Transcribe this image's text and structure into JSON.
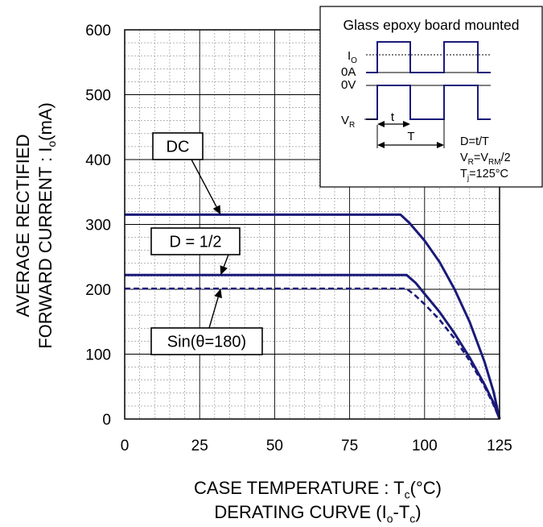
{
  "chart_data": {
    "type": "line",
    "xlabel": "CASE TEMPERATURE : T",
    "xlabel_sub": "c",
    "xlabel_tail": "(°C)",
    "ylabel_line1": "AVERAGE RECTIFIED",
    "ylabel_line2": "FORWARD CURRENT : I",
    "ylabel_sub": "o",
    "ylabel_tail": "(mA)",
    "caption": "DERATING CURVE (I",
    "caption_sub1": "o",
    "caption_mid": "-T",
    "caption_sub2": "c",
    "caption_tail": ")",
    "xlim": [
      0,
      125
    ],
    "ylim": [
      0,
      600
    ],
    "x_ticks": [
      0,
      25,
      50,
      75,
      100,
      125
    ],
    "y_ticks": [
      0,
      100,
      200,
      300,
      400,
      500,
      600
    ],
    "grid": true,
    "series": [
      {
        "name": "DC",
        "style": "solid",
        "x": [
          0,
          92,
          95,
          100,
          105,
          110,
          115,
          120,
          123,
          125
        ],
        "y": [
          315,
          315,
          302,
          275,
          242,
          200,
          150,
          88,
          42,
          0
        ]
      },
      {
        "name": "D = 1/2",
        "style": "solid",
        "x": [
          0,
          94,
          97,
          100,
          105,
          110,
          115,
          120,
          123,
          125
        ],
        "y": [
          222,
          222,
          210,
          193,
          165,
          132,
          95,
          53,
          25,
          0
        ]
      },
      {
        "name": "Sin(θ=180)",
        "style": "dashed",
        "x": [
          0,
          94,
          97,
          100,
          105,
          110,
          115,
          120,
          123,
          125
        ],
        "y": [
          201,
          201,
          190,
          177,
          153,
          124,
          90,
          50,
          22,
          0
        ]
      }
    ],
    "callouts": [
      {
        "label": "DC",
        "arrow_to": [
          32,
          315
        ]
      },
      {
        "label": "D = 1/2",
        "arrow_to": [
          32,
          222
        ]
      },
      {
        "label": "Sin(θ=180)",
        "arrow_to": [
          32,
          201
        ]
      }
    ],
    "inset": {
      "title": "Glass epoxy board mounted",
      "io_label": "I",
      "io_sub": "O",
      "zero_a": "0A",
      "zero_v": "0V",
      "vr_label": "V",
      "vr_sub": "R",
      "t_label": "t",
      "T_label": "T",
      "eq1": "D=t/T",
      "eq2_a": "V",
      "eq2_b": "R",
      "eq2_c": "=V",
      "eq2_d": "RM",
      "eq2_e": "/2",
      "eq3_a": "T",
      "eq3_b": "j",
      "eq3_c": "=125°C"
    },
    "colors": {
      "line": "#1a1a7a",
      "grid_major": "#000000",
      "grid_minor": "#8a8a8a"
    }
  }
}
